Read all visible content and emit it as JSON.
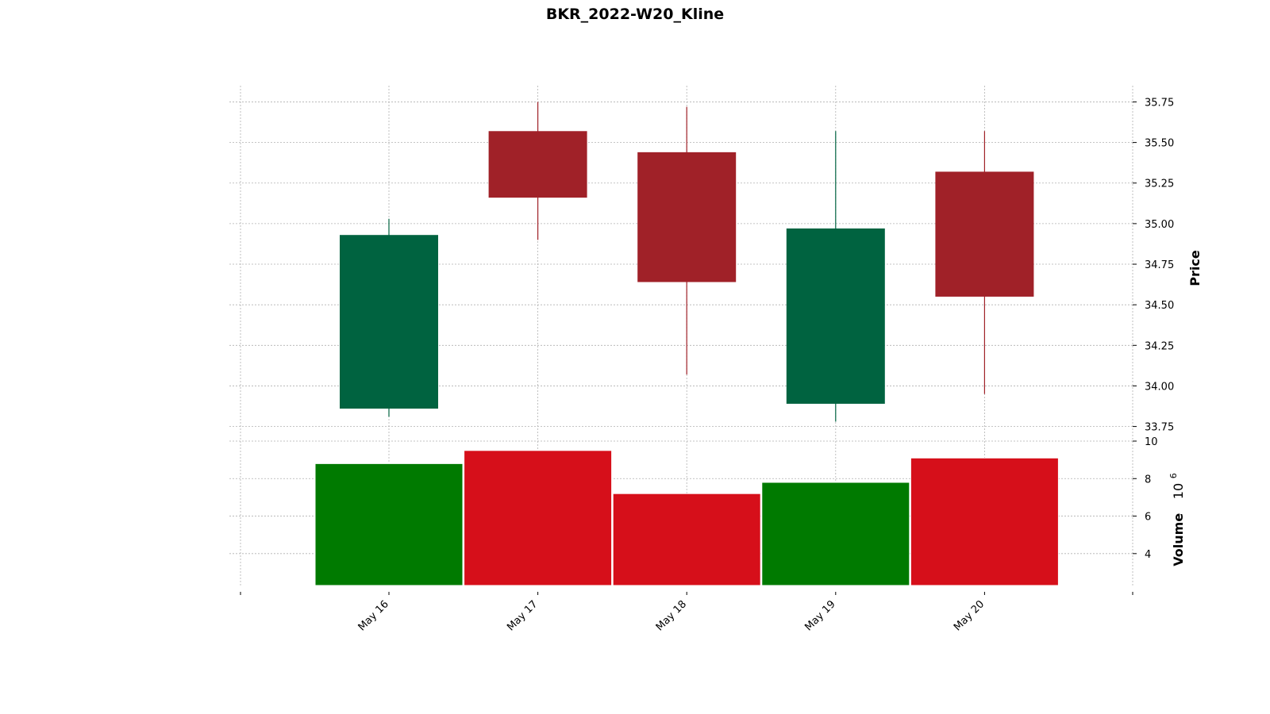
{
  "chart_data": {
    "type": "candlestick",
    "title": "BKR_2022-W20_Kline",
    "x": [
      "May 16",
      "May 17",
      "May 18",
      "May 19",
      "May 20"
    ],
    "open": [
      33.86,
      35.57,
      35.44,
      33.89,
      35.32
    ],
    "high": [
      35.03,
      35.75,
      35.72,
      35.57,
      35.57
    ],
    "low": [
      33.81,
      34.9,
      34.07,
      33.78,
      33.95
    ],
    "close": [
      34.93,
      35.16,
      34.64,
      34.97,
      34.55
    ],
    "volume": [
      8.8,
      9.5,
      7.2,
      7.8,
      9.1
    ],
    "price_axis": {
      "label": "Price",
      "ticks": [
        "33.75",
        "34.00",
        "34.25",
        "34.50",
        "34.75",
        "35.00",
        "35.25",
        "35.50",
        "35.75"
      ],
      "range": [
        33.66,
        35.85
      ]
    },
    "volume_axis": {
      "label": "Volume",
      "multiplier": "10",
      "multiplier_exp": "6",
      "ticks": [
        "4",
        "6",
        "8",
        "10"
      ],
      "range": [
        2.3,
        10
      ]
    },
    "colors": {
      "up_candle": "#006340",
      "down_candle": "#a02128",
      "up_volume": "#007a00",
      "down_volume": "#d60f1a",
      "grid": "#b0b0b0"
    },
    "grid": true
  }
}
